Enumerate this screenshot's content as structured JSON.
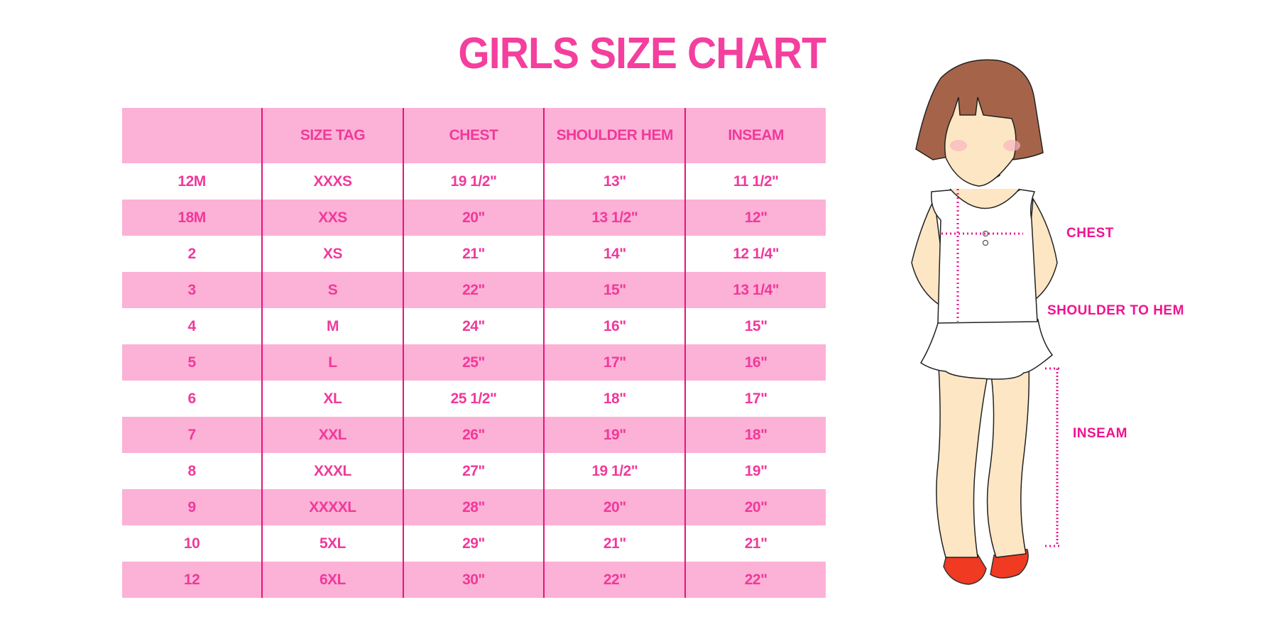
{
  "title": "GIRLS SIZE CHART",
  "table": {
    "headers": [
      "",
      "SIZE TAG",
      "CHEST",
      "SHOULDER HEM",
      "INSEAM"
    ],
    "rows": [
      [
        "12M",
        "XXXS",
        "19 1/2\"",
        "13\"",
        "11 1/2\""
      ],
      [
        "18M",
        "XXS",
        "20\"",
        "13 1/2\"",
        "12\""
      ],
      [
        "2",
        "XS",
        "21\"",
        "14\"",
        "12 1/4\""
      ],
      [
        "3",
        "S",
        "22\"",
        "15\"",
        "13 1/4\""
      ],
      [
        "4",
        "M",
        "24\"",
        "16\"",
        "15\""
      ],
      [
        "5",
        "L",
        "25\"",
        "17\"",
        "16\""
      ],
      [
        "6",
        "XL",
        "25 1/2\"",
        "18\"",
        "17\""
      ],
      [
        "7",
        "XXL",
        "26\"",
        "19\"",
        "18\""
      ],
      [
        "8",
        "XXXL",
        "27\"",
        "19 1/2\"",
        "19\""
      ],
      [
        "9",
        "XXXXL",
        "28\"",
        "20\"",
        "20\""
      ],
      [
        "10",
        "5XL",
        "29\"",
        "21\"",
        "21\""
      ],
      [
        "12",
        "6XL",
        "30\"",
        "22\"",
        "22\""
      ]
    ]
  },
  "figure": {
    "labels": {
      "chest": "CHEST",
      "shoulder": "SHOULDER TO HEM",
      "inseam": "INSEAM"
    }
  },
  "colors": {
    "accent": "#f43f9e",
    "row_pink": "#fcb1d6",
    "divider": "#e3157f",
    "hair": "#a5644a",
    "skin": "#fde6c4",
    "shoe": "#f03a22"
  }
}
